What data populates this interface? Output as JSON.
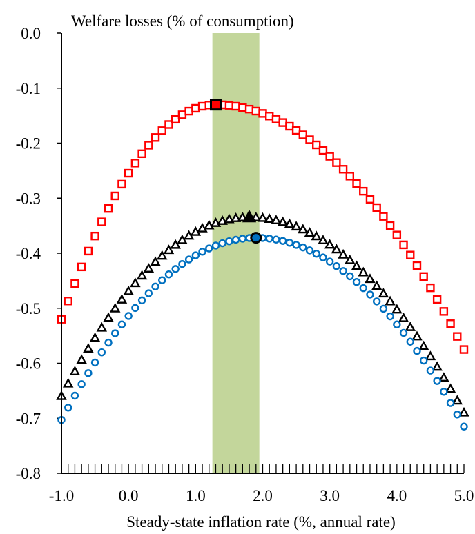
{
  "chart_data": {
    "type": "scatter",
    "title": "Welfare losses (% of consumption)",
    "xlabel": "Steady-state inflation rate (%, annual rate)",
    "ylabel": "",
    "xlim": [
      -1.0,
      5.0
    ],
    "ylim": [
      -0.8,
      0.0
    ],
    "x_ticks": [
      "-1.0",
      "0.0",
      "1.0",
      "2.0",
      "3.0",
      "4.0",
      "5.0"
    ],
    "y_ticks": [
      "0.0",
      "-0.1",
      "-0.2",
      "-0.3",
      "-0.4",
      "-0.5",
      "-0.6",
      "-0.7",
      "-0.8"
    ],
    "grid": false,
    "legend": "none",
    "shaded_band": {
      "x_from": 1.25,
      "x_to": 1.95,
      "color": "#c3d69b"
    },
    "series": [
      {
        "marker": "square",
        "color": "#ff0000",
        "x_range": [
          -1.0,
          5.0
        ],
        "peak": {
          "x": 1.3,
          "y": -0.13
        },
        "y_at_start": -0.52,
        "y_at_end": -0.575,
        "highlight": {
          "x": 1.3,
          "y": -0.13,
          "color": "#ff0000"
        }
      },
      {
        "marker": "triangle",
        "color": "#000000",
        "x_range": [
          -1.0,
          5.0
        ],
        "peak": {
          "x": 1.8,
          "y": -0.335
        },
        "y_at_start": -0.66,
        "y_at_end": -0.69,
        "highlight": {
          "x": 1.8,
          "y": -0.335,
          "color": "#000000"
        }
      },
      {
        "marker": "circle",
        "color": "#0070c0",
        "x_range": [
          -1.0,
          5.0
        ],
        "peak": {
          "x": 1.9,
          "y": -0.372
        },
        "y_at_start": -0.703,
        "y_at_end": -0.715,
        "highlight": {
          "x": 1.9,
          "y": -0.372,
          "color": "#0070c0"
        }
      }
    ]
  }
}
